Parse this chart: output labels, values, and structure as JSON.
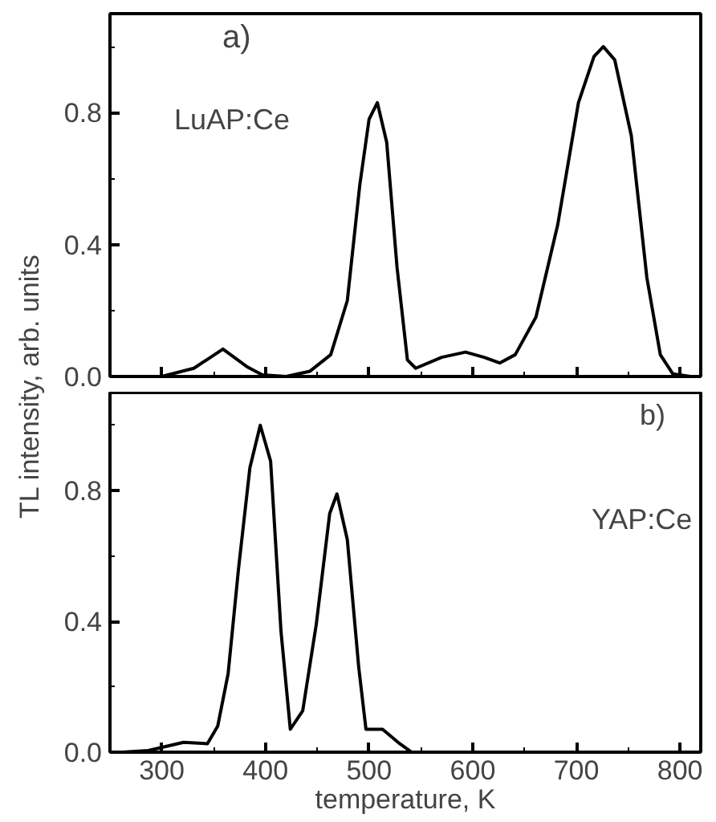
{
  "chart_data": [
    {
      "type": "line",
      "ylabel": "TL intensity, arb. units",
      "annotations": [
        "a)",
        "LuAP:Ce"
      ],
      "x": [
        250,
        300,
        331,
        359,
        382,
        397,
        420,
        443,
        463,
        479,
        491,
        500,
        508,
        517,
        527,
        537,
        545,
        570,
        593,
        611,
        626,
        641,
        661,
        682,
        702,
        717,
        726,
        737,
        753,
        768,
        781,
        793,
        810,
        820
      ],
      "series": [
        {
          "color": "#000000",
          "values": [
            0,
            0,
            0.025,
            0.083,
            0.03,
            0.005,
            0,
            0.016,
            0.066,
            0.23,
            0.58,
            0.78,
            0.83,
            0.71,
            0.33,
            0.05,
            0.025,
            0.058,
            0.074,
            0.058,
            0.041,
            0.066,
            0.18,
            0.46,
            0.83,
            0.97,
            1.0,
            0.96,
            0.73,
            0.3,
            0.066,
            0.008,
            0,
            0
          ]
        }
      ],
      "xlim": [
        250,
        820
      ],
      "xticks": [
        300,
        400,
        500,
        600,
        700,
        800
      ],
      "ylim": [
        0,
        1.1
      ],
      "yticks": [
        {
          "value": 0,
          "label": "0.0"
        },
        {
          "value": 0.4,
          "label": "0.4"
        },
        {
          "value": 0.8,
          "label": "0.8"
        }
      ],
      "tick_labels": "y",
      "grid": false
    },
    {
      "type": "line",
      "xlabel": "temperature, K",
      "annotations": [
        "b)",
        "YAP:Ce"
      ],
      "x": [
        250,
        262,
        287,
        321,
        344,
        354,
        364,
        374,
        385,
        395,
        405,
        415,
        424,
        436,
        449,
        462,
        469,
        479,
        490,
        497,
        513,
        528,
        541,
        600,
        700,
        820
      ],
      "series": [
        {
          "color": "#000000",
          "values": [
            0,
            0,
            0.005,
            0.03,
            0.026,
            0.08,
            0.24,
            0.56,
            0.87,
            1.0,
            0.89,
            0.37,
            0.07,
            0.127,
            0.39,
            0.73,
            0.79,
            0.65,
            0.26,
            0.07,
            0.07,
            0.03,
            0,
            0,
            0,
            0
          ]
        }
      ],
      "xlim": [
        250,
        820
      ],
      "xticks": [
        300,
        400,
        500,
        600,
        700,
        800
      ],
      "ylim": [
        0,
        1.1
      ],
      "yticks": [
        {
          "value": 0,
          "label": "0.0"
        },
        {
          "value": 0.4,
          "label": "0.4"
        },
        {
          "value": 0.8,
          "label": "0.8"
        }
      ],
      "grid": false
    }
  ]
}
